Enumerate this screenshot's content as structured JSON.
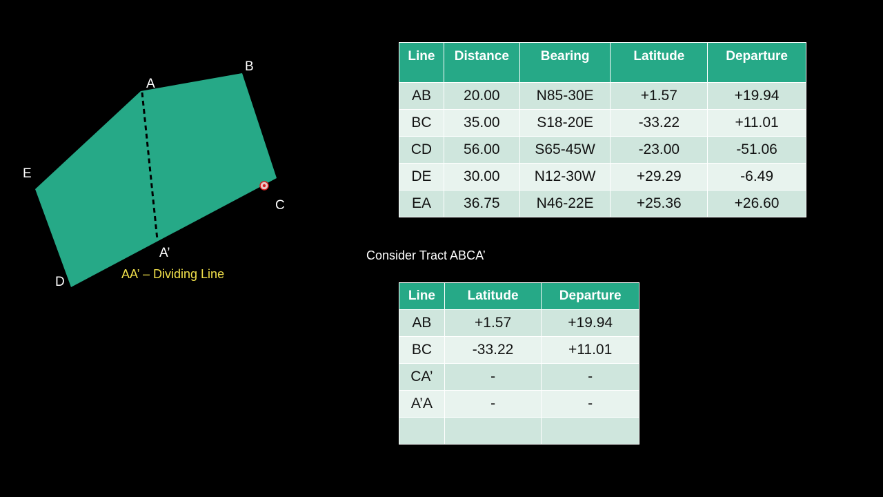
{
  "figure": {
    "vertices": {
      "A": "A",
      "B": "B",
      "C": "C",
      "D": "D",
      "E": "E",
      "A_prime": "A’"
    },
    "caption": "AA’ – Dividing Line",
    "colors": {
      "fill": "#26a987",
      "dividing_line": "#000000",
      "caption": "#f2e14b"
    }
  },
  "main_table": {
    "headers": [
      "Line",
      "Distance",
      "Bearing",
      "Latitude",
      "Departure"
    ],
    "rows": [
      [
        "AB",
        "20.00",
        "N85-30E",
        "+1.57",
        "+19.94"
      ],
      [
        "BC",
        "35.00",
        "S18-20E",
        "-33.22",
        "+11.01"
      ],
      [
        "CD",
        "56.00",
        "S65-45W",
        "-23.00",
        "-51.06"
      ],
      [
        "DE",
        "30.00",
        "N12-30W",
        "+29.29",
        "-6.49"
      ],
      [
        "EA",
        "36.75",
        "N46-22E",
        "+25.36",
        "+26.60"
      ]
    ]
  },
  "tract_caption": "Consider Tract ABCA’",
  "tract_table": {
    "headers": [
      "Line",
      "Latitude",
      "Departure"
    ],
    "rows": [
      [
        "AB",
        "+1.57",
        "+19.94"
      ],
      [
        "BC",
        "-33.22",
        "+11.01"
      ],
      [
        "CA’",
        "-",
        "-"
      ],
      [
        "A’A",
        "-",
        "-"
      ],
      [
        "",
        "",
        ""
      ]
    ]
  },
  "colors": {
    "header_bg": "#26a987",
    "row_odd": "#cfe6dd",
    "row_even": "#e8f3ee",
    "background": "#000000"
  }
}
